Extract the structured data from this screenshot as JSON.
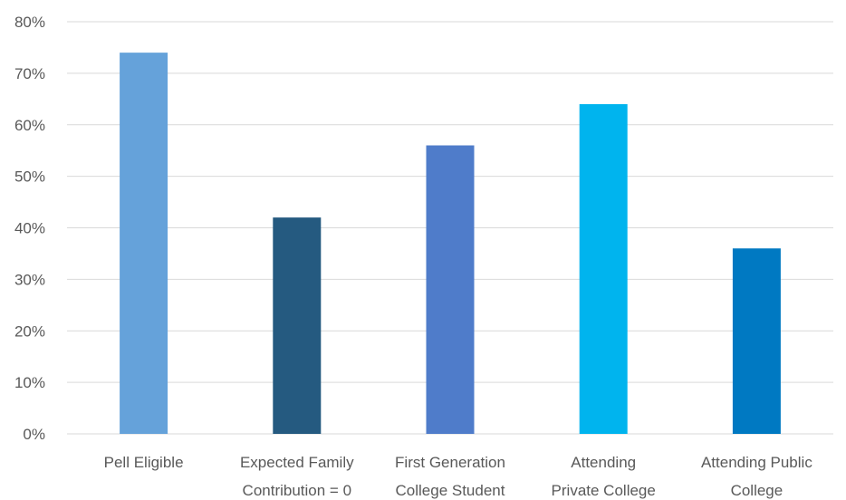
{
  "chart_data": {
    "type": "bar",
    "title": "",
    "xlabel": "",
    "ylabel": "",
    "ylim": [
      0,
      80
    ],
    "y_ticks": [
      "0%",
      "10%",
      "20%",
      "30%",
      "40%",
      "50%",
      "60%",
      "70%",
      "80%"
    ],
    "grid": true,
    "legend": "none",
    "categories": [
      [
        "Pell Eligible"
      ],
      [
        "Expected Family",
        "Contribution = 0"
      ],
      [
        "First Generation",
        "College Student"
      ],
      [
        "Attending",
        "Private College"
      ],
      [
        "Attending Public",
        "College"
      ]
    ],
    "values": [
      74,
      42,
      56,
      64,
      36
    ],
    "colors": [
      "#65a2da",
      "#255a80",
      "#4f7cca",
      "#00b4ee",
      "#0079c2"
    ]
  }
}
